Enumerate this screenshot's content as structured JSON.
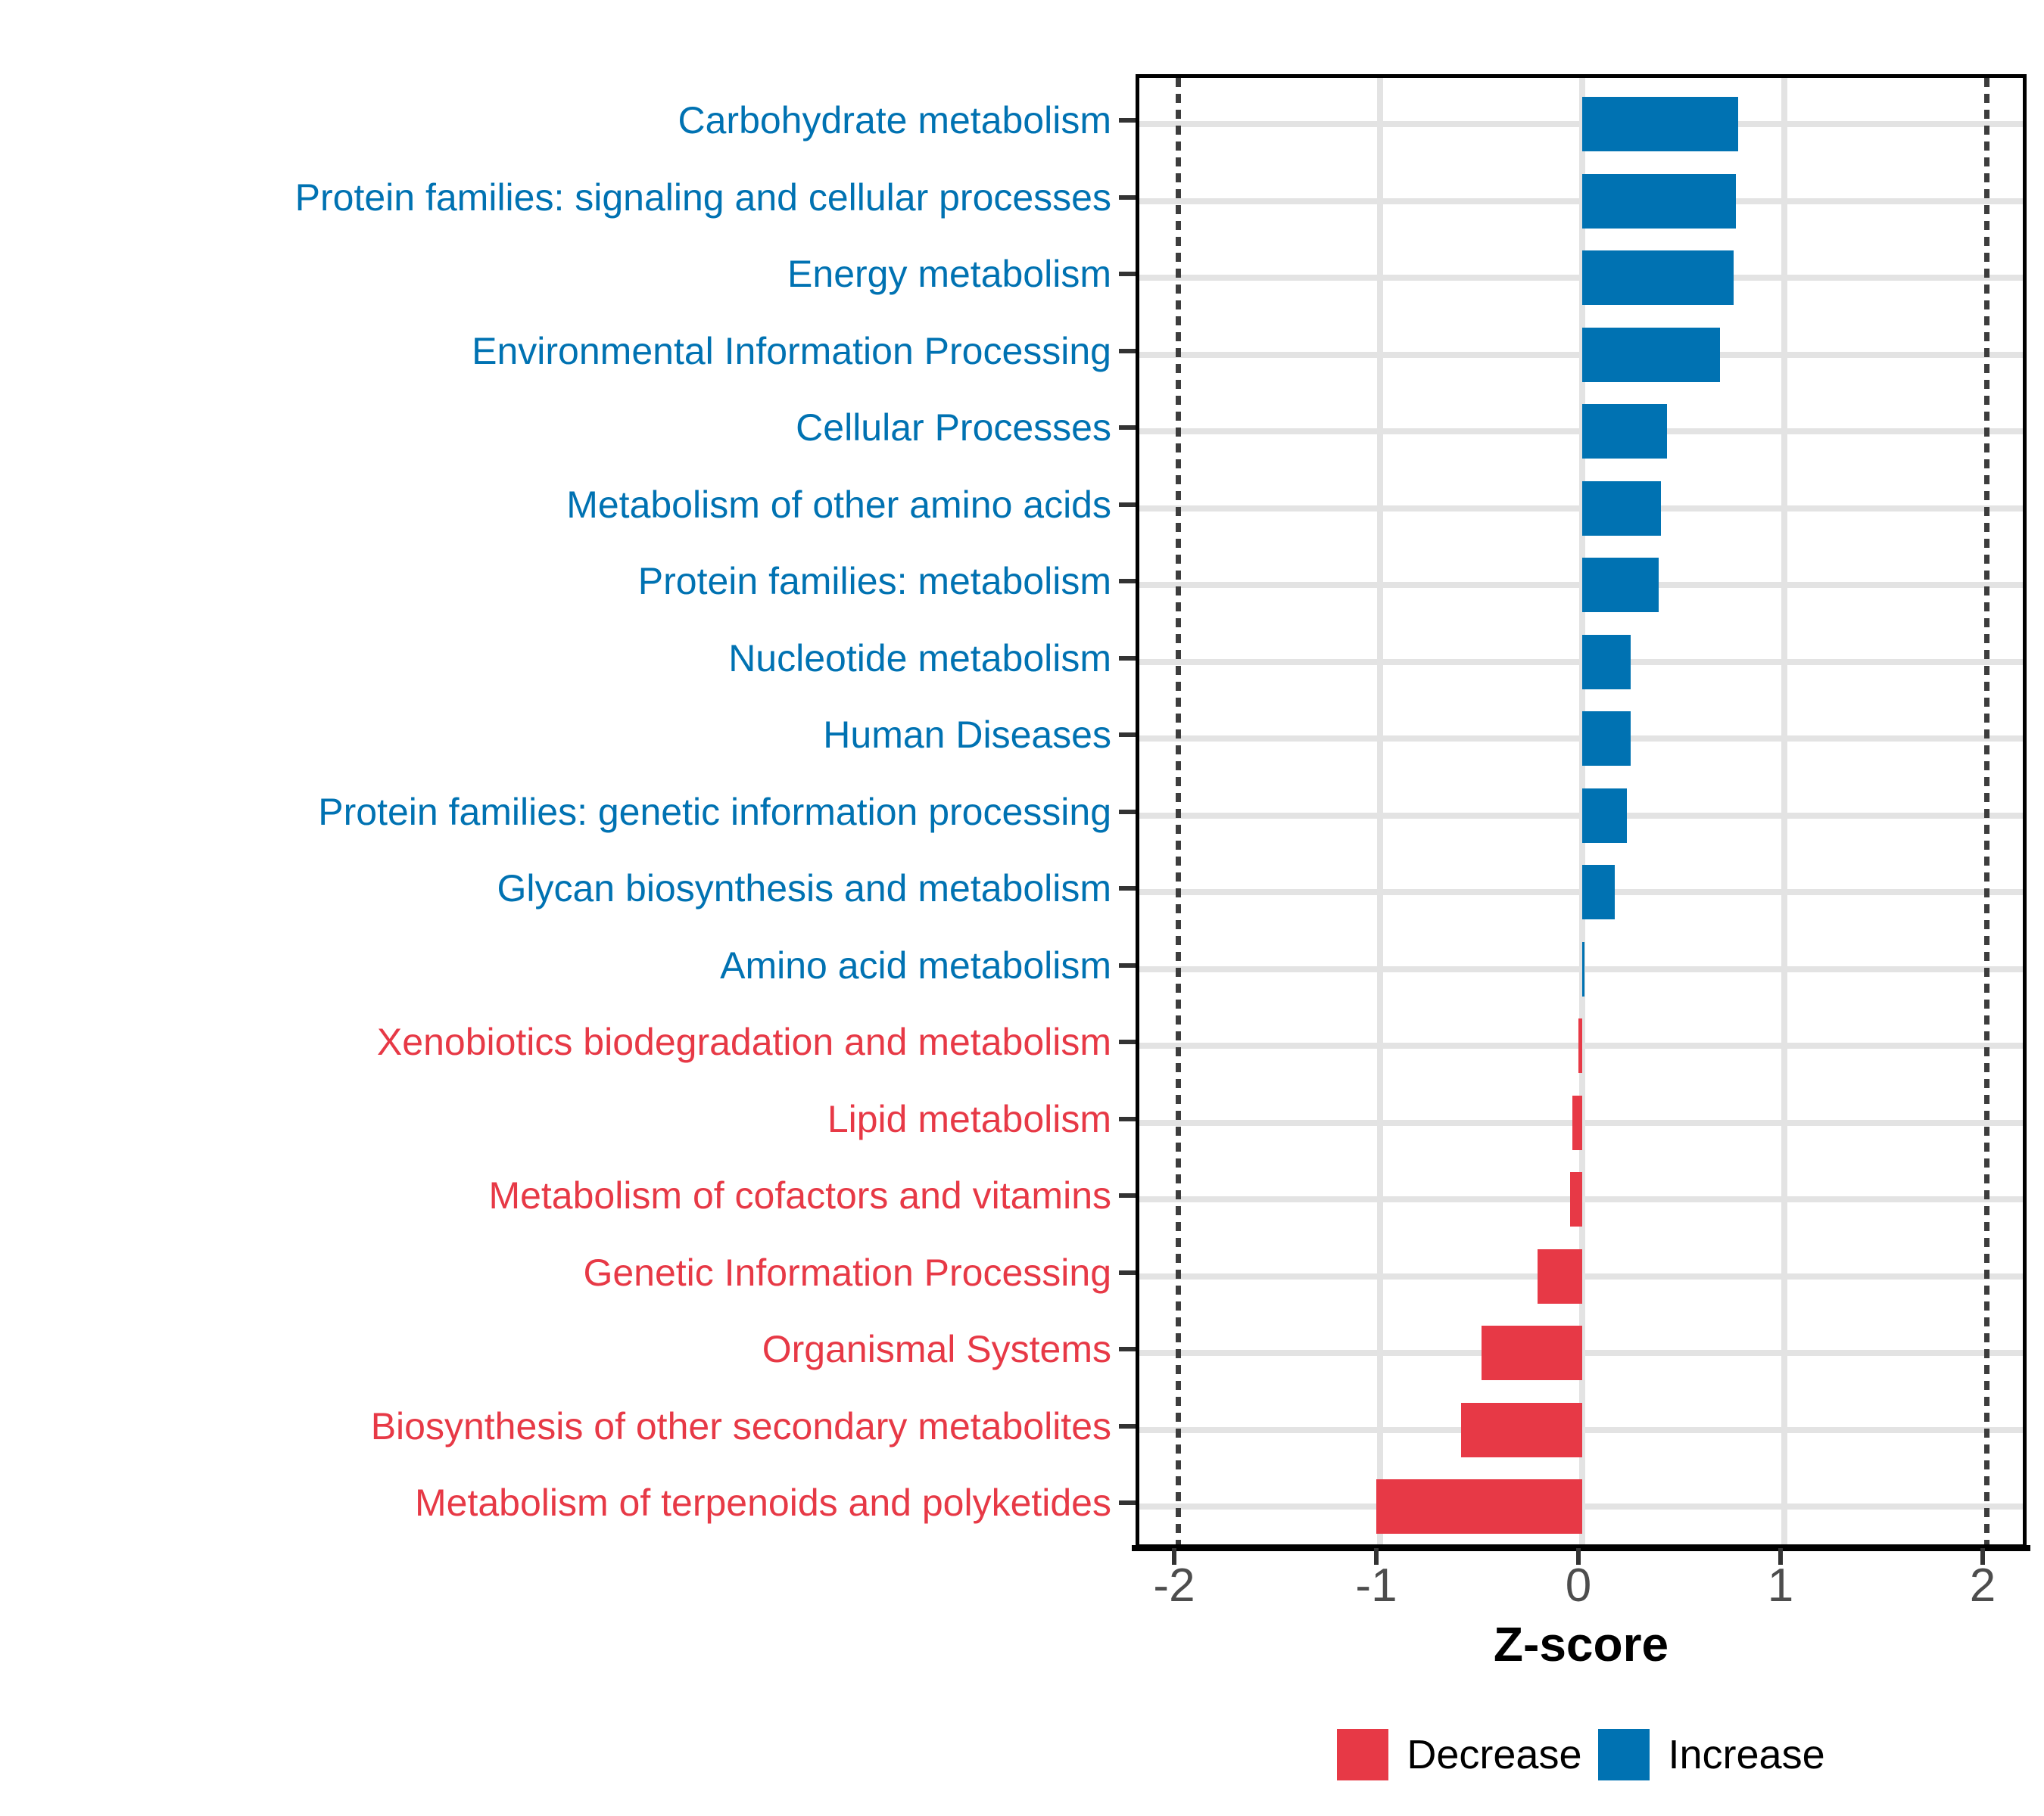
{
  "chart_data": {
    "type": "bar",
    "orientation": "horizontal",
    "title": "",
    "xlabel": "Z-score",
    "ylabel": "",
    "xlim": [
      -2.2,
      2.2
    ],
    "xticks": [
      -2,
      -1,
      0,
      1,
      2
    ],
    "xtick_labels": [
      "-2",
      "-1",
      "0",
      "1",
      "2"
    ],
    "gridline_ticks": [
      -1,
      0,
      1
    ],
    "reference_lines": [
      -2,
      2
    ],
    "grid": true,
    "legend_position": "bottom",
    "categories": [
      "Carbohydrate metabolism",
      "Protein families: signaling and cellular processes",
      "Energy metabolism",
      "Environmental Information Processing",
      "Cellular Processes",
      "Metabolism of other amino acids",
      "Protein families: metabolism",
      "Nucleotide metabolism",
      "Human Diseases",
      "Protein families: genetic information processing",
      "Glycan biosynthesis and metabolism",
      "Amino acid metabolism",
      "Xenobiotics biodegradation and metabolism",
      "Lipid metabolism",
      "Metabolism of cofactors and vitamins",
      "Genetic Information Processing",
      "Organismal Systems",
      "Biosynthesis of other secondary metabolites",
      "Metabolism of terpenoids and polyketides"
    ],
    "values": [
      0.77,
      0.76,
      0.75,
      0.68,
      0.42,
      0.39,
      0.38,
      0.24,
      0.24,
      0.22,
      0.16,
      0.01,
      -0.02,
      -0.05,
      -0.06,
      -0.22,
      -0.5,
      -0.6,
      -1.02
    ],
    "directions": [
      "Increase",
      "Increase",
      "Increase",
      "Increase",
      "Increase",
      "Increase",
      "Increase",
      "Increase",
      "Increase",
      "Increase",
      "Increase",
      "Increase",
      "Decrease",
      "Decrease",
      "Decrease",
      "Decrease",
      "Decrease",
      "Decrease",
      "Decrease"
    ],
    "colors": {
      "Increase": "#0072B2",
      "Decrease": "#E73946"
    },
    "legend": [
      {
        "key": "Decrease",
        "label": "Decrease"
      },
      {
        "key": "Increase",
        "label": "Increase"
      }
    ]
  }
}
